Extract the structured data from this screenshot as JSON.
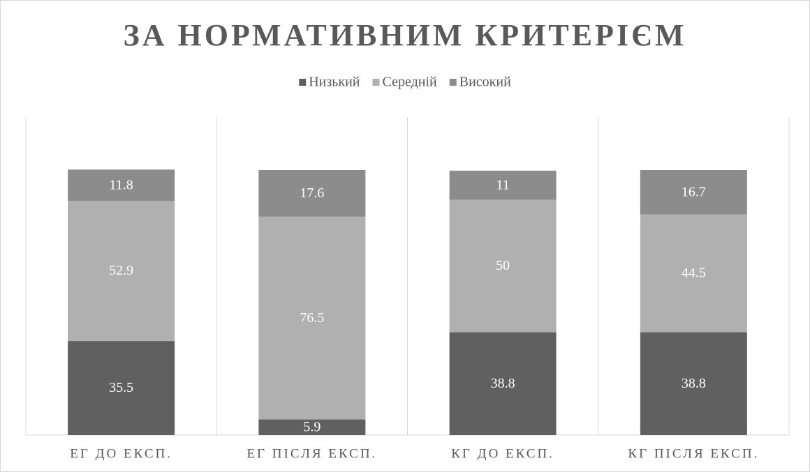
{
  "chart_data": {
    "type": "stacked_bar",
    "title": "ЗА НОРМАТИВНИМ КРИТЕРІЄМ",
    "categories": [
      "ЕГ ДО ЕКСП.",
      "ЕГ ПІСЛЯ ЕКСП.",
      "КГ ДО ЕКСП.",
      "КГ ПІСЛЯ ЕКСП."
    ],
    "series": [
      {
        "name": "Низький",
        "color": "#606060",
        "values": [
          35.5,
          5.9,
          38.8,
          38.8
        ]
      },
      {
        "name": "Середній",
        "color": "#b0b0b0",
        "values": [
          52.9,
          76.5,
          50,
          44.5
        ]
      },
      {
        "name": "Високий",
        "color": "#8c8c8c",
        "values": [
          11.8,
          17.6,
          11,
          16.7
        ]
      }
    ],
    "ylim": [
      0,
      120
    ],
    "legend": "top"
  }
}
